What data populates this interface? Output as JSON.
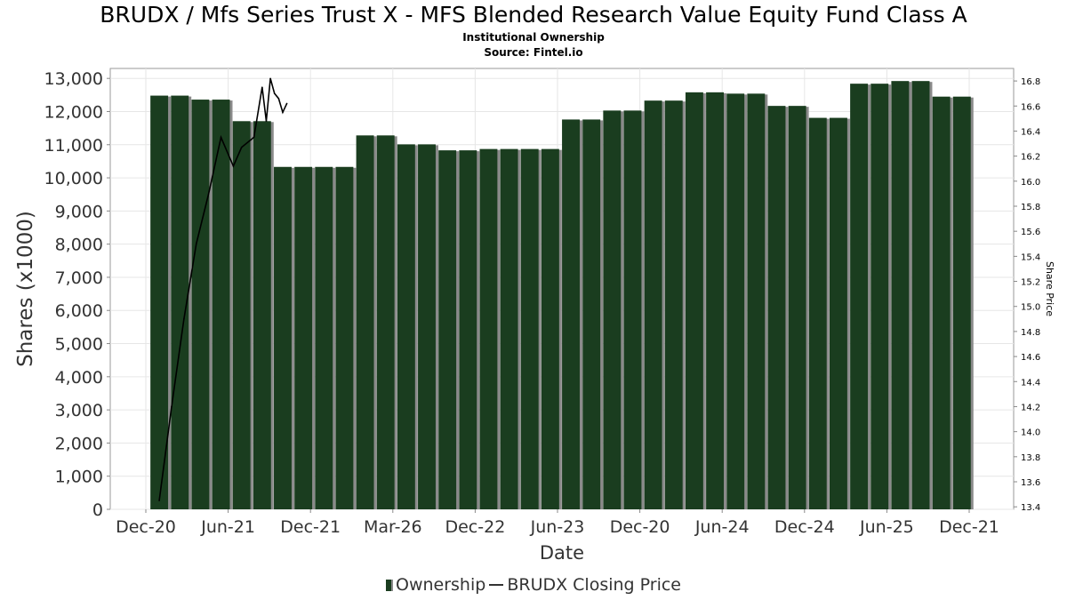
{
  "header": {
    "title": "BRUDX / Mfs Series Trust X - MFS Blended Research Value Equity Fund Class A",
    "subtitle_line1": "Institutional Ownership",
    "subtitle_line2": "Source: Fintel.io"
  },
  "legend": {
    "ownership_label": "Ownership",
    "price_label": "BRUDX Closing Price"
  },
  "colors": {
    "bar_fill": "#1a3d1f",
    "bar_shadow": "#8a8a8a",
    "price_line": "#000000",
    "grid": "#e6e6e6",
    "axis_text": "#333333"
  },
  "chart_data": {
    "type": "bar",
    "xlabel": "Date",
    "ylabel": "Shares (x1000)",
    "y2label": "Share Price",
    "ylim": [
      0,
      13300
    ],
    "y2lim": [
      13.38,
      16.9
    ],
    "y_ticks": [
      0,
      1000,
      2000,
      3000,
      4000,
      5000,
      6000,
      7000,
      8000,
      9000,
      10000,
      11000,
      12000,
      13000
    ],
    "y_tick_labels": [
      "0",
      "1,000",
      "2,000",
      "3,000",
      "4,000",
      "5,000",
      "6,000",
      "7,000",
      "8,000",
      "9,000",
      "10,000",
      "11,000",
      "12,000",
      "13,000"
    ],
    "y2_ticks": [
      "13.4",
      "13.6",
      "13.8",
      "14.0",
      "14.2",
      "14.4",
      "14.6",
      "14.8",
      "15.0",
      "15.2",
      "15.4",
      "15.6",
      "15.8",
      "16.0",
      "16.2",
      "16.4",
      "16.6",
      "16.8"
    ],
    "x_tick_labels": [
      "Dec-20",
      "Jun-21",
      "Dec-21",
      "Mar-26",
      "Dec-22",
      "Jun-23",
      "Dec-20",
      "Jun-24",
      "Dec-24",
      "Jun-25",
      "Dec-21"
    ],
    "grid": true,
    "legend_position": "bottom",
    "series": [
      {
        "name": "Ownership",
        "values": [
          0,
          12480,
          12480,
          12360,
          12360,
          11710,
          11710,
          10330,
          10330,
          10330,
          10330,
          11280,
          11280,
          11010,
          11010,
          10830,
          10830,
          10870,
          10870,
          10870,
          10870,
          11760,
          11760,
          12030,
          12030,
          12330,
          12330,
          12580,
          12580,
          12540,
          12540,
          12170,
          12170,
          11810,
          11810,
          12840,
          12840,
          12920,
          12920,
          12450,
          12450
        ]
      },
      {
        "name": "BRUDX Closing Price",
        "x_index": [
          1.0,
          1.6,
          2.2,
          2.8,
          3.4,
          4.0,
          4.6,
          5.0,
          5.6,
          6.0,
          6.2,
          6.4,
          6.6,
          6.8,
          7.0,
          7.2
        ],
        "values": [
          13.45,
          14.2,
          14.9,
          15.5,
          15.9,
          16.35,
          16.12,
          16.27,
          16.35,
          16.75,
          16.48,
          16.82,
          16.7,
          16.66,
          16.55,
          16.62
        ]
      }
    ]
  }
}
